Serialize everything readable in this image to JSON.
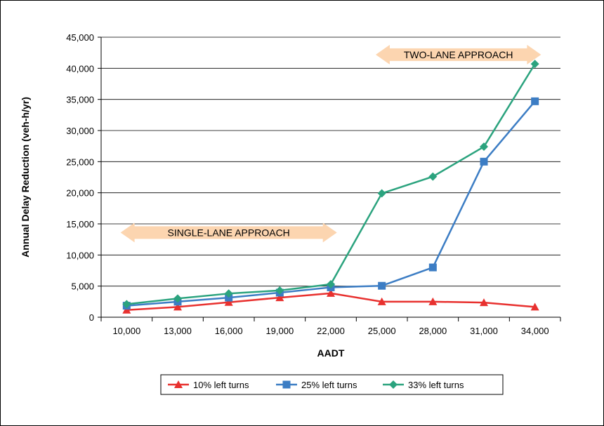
{
  "chart_data": {
    "type": "line",
    "title": "",
    "xlabel": "AADT",
    "ylabel": "Annual Delay Reduction (veh-h/yr)",
    "categories": [
      "10,000",
      "13,000",
      "16,000",
      "19,000",
      "22,000",
      "25,000",
      "28,000",
      "31,000",
      "34,000"
    ],
    "ylim": [
      0,
      45000
    ],
    "yticks": [
      0,
      5000,
      10000,
      15000,
      20000,
      25000,
      30000,
      35000,
      40000,
      45000
    ],
    "ytick_labels": [
      "0",
      "5,000",
      "10,000",
      "15,000",
      "20,000",
      "25,000",
      "30,000",
      "35,000",
      "40,000",
      "45,000"
    ],
    "grid": "horizontal",
    "legend_position": "bottom",
    "series": [
      {
        "name": "10% left turns",
        "color": "#E8312F",
        "marker": "triangle",
        "values": [
          1150,
          1650,
          2400,
          3150,
          3850,
          2500,
          2500,
          2350,
          1650
        ]
      },
      {
        "name": "25% left turns",
        "color": "#3C7DC4",
        "marker": "square",
        "values": [
          1850,
          2500,
          3150,
          3950,
          4800,
          5050,
          8000,
          25000,
          34700
        ]
      },
      {
        "name": "33% left turns",
        "color": "#2BA37E",
        "marker": "diamond",
        "values": [
          2100,
          3000,
          3800,
          4300,
          5300,
          19900,
          22600,
          27400,
          40700
        ]
      }
    ],
    "annotations": [
      {
        "text": "SINGLE-LANE APPROACH",
        "x_from": "10,000",
        "x_to": "22,000",
        "y": 13600,
        "style": "double-arrow",
        "color": "#FCD5B0"
      },
      {
        "text": "TWO-LANE APPROACH",
        "x_from": "25,000",
        "x_to": "34,000",
        "y": 42200,
        "style": "double-arrow",
        "color": "#FCD5B0"
      }
    ]
  }
}
